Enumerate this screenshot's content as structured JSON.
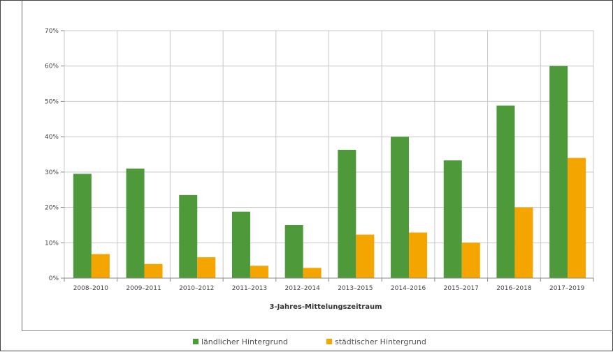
{
  "chart_data": {
    "type": "bar",
    "xlabel": "3-Jahres-Mittelungszeitraum",
    "ylabel": "",
    "ylim": [
      0,
      70
    ],
    "yticks": [
      "0%",
      "10%",
      "20%",
      "30%",
      "40%",
      "50%",
      "60%",
      "70%"
    ],
    "categories": [
      "2008–2010",
      "2009–2011",
      "2010–2012",
      "2011–2013",
      "2012–2014",
      "2013–2015",
      "2014–2016",
      "2015–2017",
      "2016–2018",
      "2017–2019"
    ],
    "series": [
      {
        "name": "ländlicher Hintergrund",
        "color": "#4e9a3b",
        "values": [
          29.5,
          31,
          23.5,
          18.8,
          15,
          36.3,
          40,
          33.3,
          48.8,
          60
        ]
      },
      {
        "name": "städtischer Hintergrund",
        "color": "#f5a500",
        "values": [
          6.8,
          4,
          5.9,
          3.5,
          2.9,
          12.3,
          12.9,
          10,
          20,
          34
        ]
      }
    ],
    "grid": true,
    "legend_position": "bottom"
  }
}
